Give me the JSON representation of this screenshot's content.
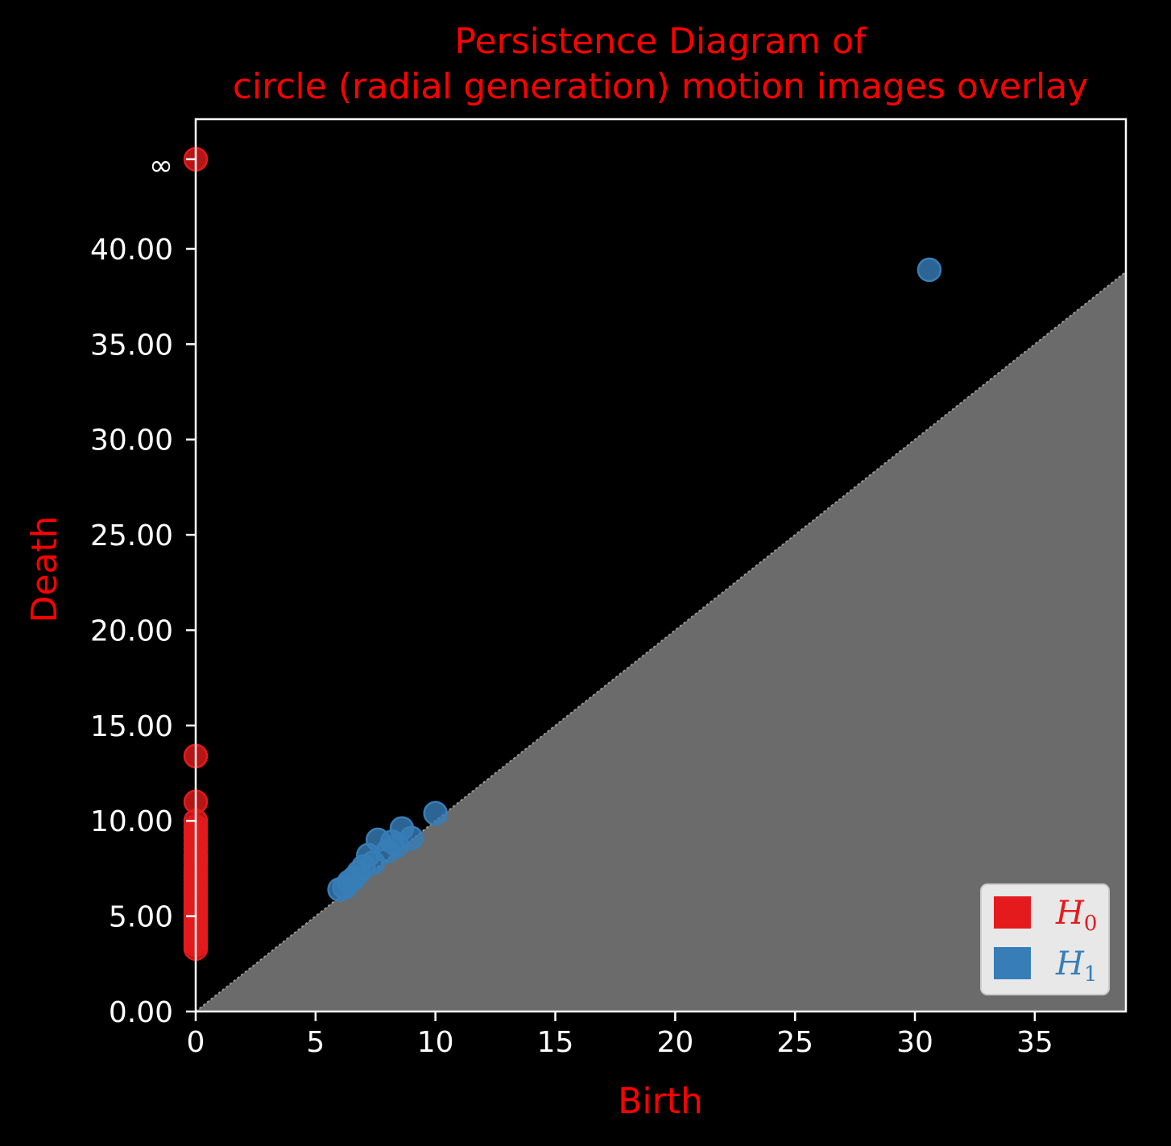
{
  "chart_data": {
    "type": "scatter",
    "title": "Persistence Diagram of\ncircle (radial generation) motion images overlay",
    "title_lines": [
      "Persistence Diagram of",
      "circle (radial generation) motion images overlay"
    ],
    "xlabel": "Birth",
    "ylabel": "Death",
    "xlim": [
      0,
      38.8
    ],
    "ylim": [
      0,
      46.8
    ],
    "xticks": [
      "0",
      "5",
      "10",
      "15",
      "20",
      "25",
      "30",
      "35"
    ],
    "xtick_values": [
      0,
      5,
      10,
      15,
      20,
      25,
      30,
      35
    ],
    "yticks": [
      "0.00",
      "5.00",
      "10.00",
      "15.00",
      "20.00",
      "25.00",
      "30.00",
      "35.00",
      "40.00",
      "∞"
    ],
    "ytick_values": [
      0,
      5,
      10,
      15,
      20,
      25,
      30,
      35,
      40,
      44.7
    ],
    "infinity_value": 44.7,
    "diagonal_region": "shaded gray below diagonal",
    "legend_position": "bottom-right",
    "legend": [
      {
        "label": "H",
        "subscript": "0",
        "color": "#e41a1c"
      },
      {
        "label": "H",
        "subscript": "1",
        "color": "#377eb8"
      }
    ],
    "series": [
      {
        "name": "H0",
        "color": "#e41a1c",
        "points": [
          [
            0,
            44.7
          ],
          [
            0,
            13.4
          ],
          [
            0,
            11.0
          ],
          [
            0,
            10.0
          ],
          [
            0,
            9.7
          ],
          [
            0,
            9.4
          ],
          [
            0,
            9.1
          ],
          [
            0,
            8.8
          ],
          [
            0,
            8.5
          ],
          [
            0,
            8.2
          ],
          [
            0,
            8.0
          ],
          [
            0,
            7.8
          ],
          [
            0,
            7.5
          ],
          [
            0,
            7.3
          ],
          [
            0,
            7.1
          ],
          [
            0,
            6.9
          ],
          [
            0,
            6.7
          ],
          [
            0,
            6.5
          ],
          [
            0,
            6.3
          ],
          [
            0,
            6.1
          ],
          [
            0,
            5.9
          ],
          [
            0,
            5.7
          ],
          [
            0,
            5.5
          ],
          [
            0,
            5.3
          ],
          [
            0,
            5.1
          ],
          [
            0,
            4.9
          ],
          [
            0,
            4.7
          ],
          [
            0,
            4.5
          ],
          [
            0,
            4.3
          ],
          [
            0,
            4.1
          ],
          [
            0,
            3.9
          ],
          [
            0,
            3.7
          ],
          [
            0,
            3.5
          ],
          [
            0,
            3.3
          ]
        ]
      },
      {
        "name": "H1",
        "color": "#377eb8",
        "points": [
          [
            30.6,
            38.9
          ],
          [
            10.0,
            10.4
          ],
          [
            8.6,
            9.6
          ],
          [
            9.0,
            9.1
          ],
          [
            7.6,
            9.0
          ],
          [
            8.2,
            8.9
          ],
          [
            8.4,
            8.7
          ],
          [
            8.0,
            8.4
          ],
          [
            7.2,
            8.2
          ],
          [
            7.4,
            7.8
          ],
          [
            7.0,
            7.6
          ],
          [
            6.8,
            7.3
          ],
          [
            6.6,
            7.0
          ],
          [
            6.4,
            6.8
          ],
          [
            6.2,
            6.5
          ],
          [
            6.0,
            6.4
          ]
        ]
      }
    ]
  }
}
